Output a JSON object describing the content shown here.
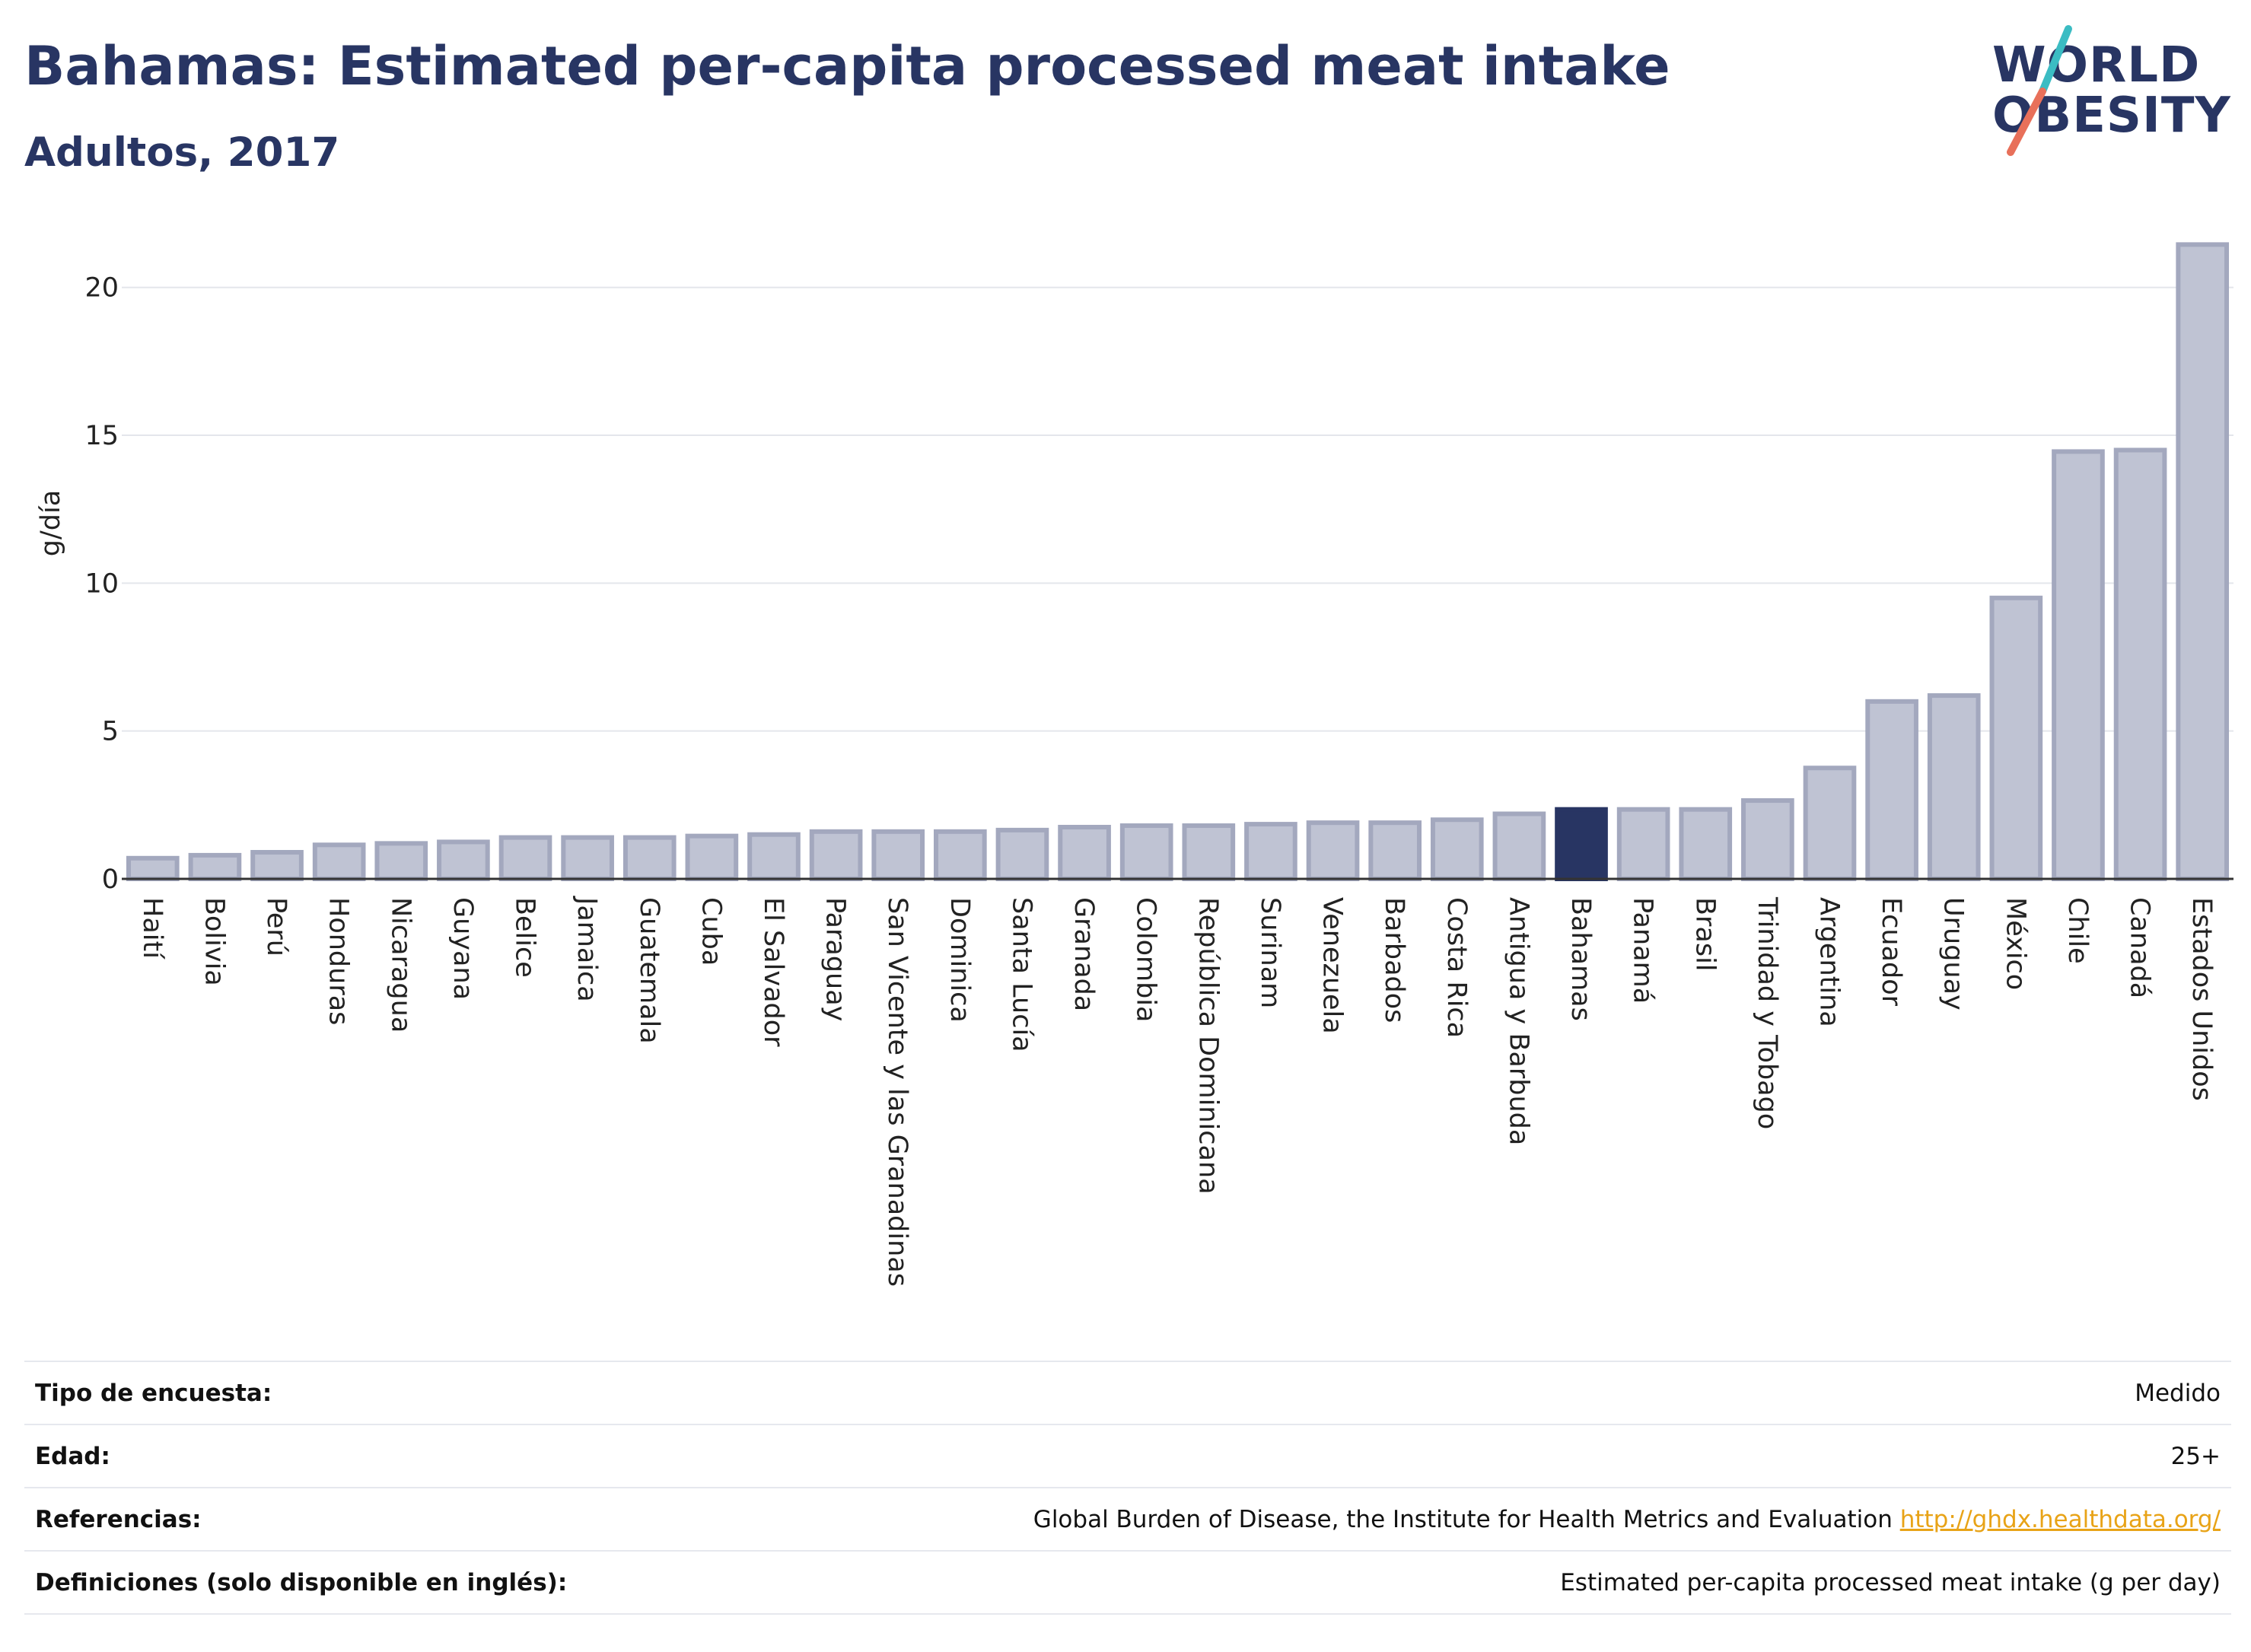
{
  "header": {
    "title": "Bahamas: Estimated per-capita processed meat intake",
    "subtitle": "Adultos, 2017"
  },
  "logo": {
    "line1": "WORLD",
    "line2": "OBESITY"
  },
  "colors": {
    "title": "#283563",
    "bar_default": "#bfc3d3",
    "bar_default_stroke": "#a3a8be",
    "bar_highlight": "#283563",
    "logo_teal": "#3bbcc3",
    "logo_coral": "#e8705a",
    "link": "#e8a317"
  },
  "chart_data": {
    "type": "bar",
    "title": "Bahamas: Estimated per-capita processed meat intake",
    "subtitle": "Adultos, 2017",
    "xlabel": "",
    "ylabel": "g/día",
    "ylim": [
      0,
      22
    ],
    "yticks": [
      0,
      5,
      10,
      15,
      20
    ],
    "grid": true,
    "highlight": "Bahamas",
    "categories": [
      "Haití",
      "Bolivia",
      "Perú",
      "Honduras",
      "Nicaragua",
      "Guyana",
      "Belice",
      "Jamaica",
      "Guatemala",
      "Cuba",
      "El Salvador",
      "Paraguay",
      "San Vicente y las Granadinas",
      "Dominica",
      "Santa Lucía",
      "Granada",
      "Colombia",
      "República Dominicana",
      "Surinam",
      "Venezuela",
      "Barbados",
      "Costa Rica",
      "Antigua y Barbuda",
      "Bahamas",
      "Panamá",
      "Brasil",
      "Trinidad y Tobago",
      "Argentina",
      "Ecuador",
      "Uruguay",
      "México",
      "Chile",
      "Canadá",
      "Estados Unidos"
    ],
    "values": [
      0.7,
      0.8,
      0.9,
      1.15,
      1.2,
      1.25,
      1.4,
      1.4,
      1.4,
      1.45,
      1.5,
      1.6,
      1.6,
      1.6,
      1.65,
      1.75,
      1.8,
      1.8,
      1.85,
      1.9,
      1.9,
      2.0,
      2.2,
      2.35,
      2.35,
      2.35,
      2.65,
      3.75,
      6.0,
      6.2,
      9.5,
      14.45,
      14.5,
      21.45
    ]
  },
  "table": {
    "rows": [
      {
        "key": "Tipo de encuesta:",
        "value": "Medido"
      },
      {
        "key": "Edad:",
        "value": "25+"
      },
      {
        "key": "Referencias:",
        "value": "Global Burden of Disease, the Institute for Health Metrics and Evaluation",
        "link": "http://ghdx.healthdata.org/"
      },
      {
        "key": "Definiciones (solo disponible en inglés):",
        "value": "Estimated per-capita processed meat intake (g per day)"
      }
    ]
  }
}
